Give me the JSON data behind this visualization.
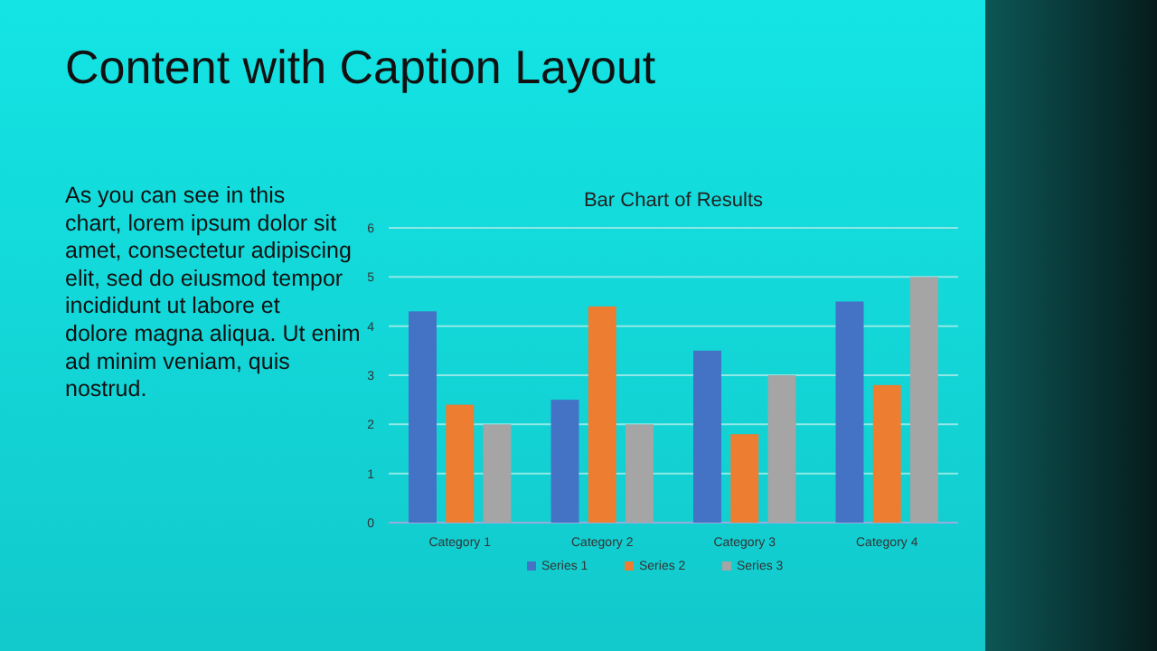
{
  "chart_data": {
    "type": "bar",
    "title": "Bar Chart of Results",
    "categories": [
      "Category 1",
      "Category 2",
      "Category 3",
      "Category 4"
    ],
    "series": [
      {
        "name": "Series 1",
        "color": "#4472c4",
        "values": [
          4.3,
          2.5,
          3.5,
          4.5
        ]
      },
      {
        "name": "Series 2",
        "color": "#ed7d31",
        "values": [
          2.4,
          4.4,
          1.8,
          2.8
        ]
      },
      {
        "name": "Series 3",
        "color": "#a5a5a5",
        "values": [
          2,
          2,
          3,
          5
        ]
      }
    ],
    "ylim": [
      0,
      6
    ],
    "yticks": [
      0,
      1,
      2,
      3,
      4,
      5,
      6
    ],
    "grid": "y",
    "legend": "bottom",
    "annotations": [
      "Content with Caption Layout",
      "As you can see in this chart, lorem ipsum dolor sit amet, consectetur adipiscing elit, sed do eiusmod tempor incididunt ut labore et dolore magna aliqua. Ut enim ad minim veniam, quis nostrud."
    ]
  }
}
